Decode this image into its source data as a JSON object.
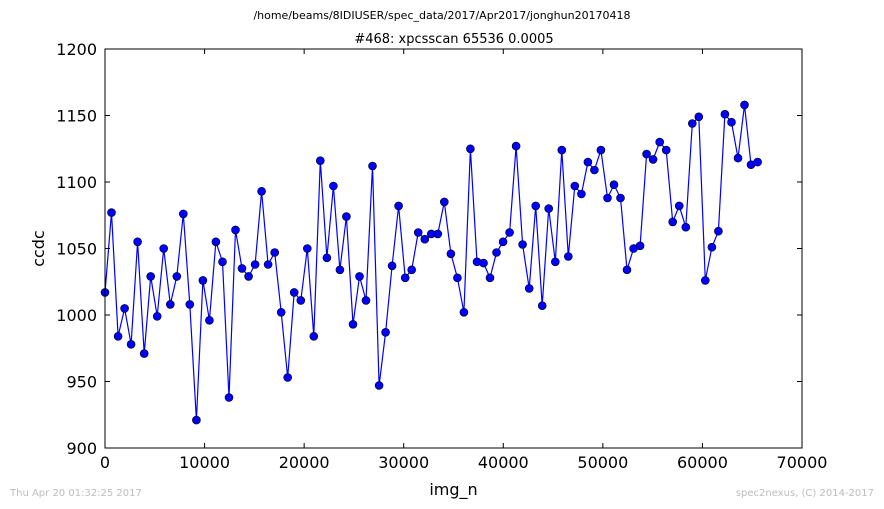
{
  "header": {
    "path": "/home/beams/8IDIUSER/spec_data/2017/Apr2017/jonghun20170418"
  },
  "footer": {
    "timestamp": "Thu Apr 20 01:32:25 2017",
    "credit": "spec2nexus, (C) 2014-2017"
  },
  "chart_data": {
    "type": "line",
    "title": "#468: xpcsscan 65536 0.0005",
    "xlabel": "img_n",
    "ylabel": "ccdc",
    "xlim": [
      0,
      70000
    ],
    "ylim": [
      900,
      1200
    ],
    "xticks": [
      0,
      10000,
      20000,
      30000,
      40000,
      50000,
      60000,
      70000
    ],
    "yticks": [
      900,
      950,
      1000,
      1050,
      1100,
      1150,
      1200
    ],
    "grid": false,
    "legend": "none",
    "color": "#0000ff",
    "x": [
      0,
      655,
      1311,
      1966,
      2621,
      3277,
      3932,
      4588,
      5243,
      5898,
      6554,
      7209,
      7864,
      8520,
      9175,
      9830,
      10486,
      11141,
      11796,
      12452,
      13107,
      13763,
      14418,
      15073,
      15729,
      16384,
      17039,
      17695,
      18350,
      19005,
      19661,
      20316,
      20972,
      21627,
      22282,
      22938,
      23593,
      24248,
      24904,
      25559,
      26214,
      26870,
      27525,
      28181,
      28836,
      29491,
      30147,
      30802,
      31457,
      32113,
      32768,
      33423,
      34079,
      34734,
      35389,
      36045,
      36700,
      37356,
      38011,
      38666,
      39322,
      39977,
      40632,
      41288,
      41943,
      42598,
      43254,
      43909,
      44565,
      45220,
      45875,
      46531,
      47186,
      47841,
      48497,
      49152,
      49807,
      50463,
      51118,
      51774,
      52429,
      53084,
      53740,
      54395,
      55050,
      55706,
      56361,
      57016,
      57672,
      58327,
      58982,
      59638,
      60293,
      60949,
      61604,
      62259,
      62915,
      63570,
      64225,
      64881,
      65536
    ],
    "y": [
      1017,
      1077,
      984,
      1005,
      978,
      1055,
      971,
      1029,
      999,
      1050,
      1008,
      1029,
      1076,
      1008,
      921,
      1026,
      996,
      1055,
      1040,
      938,
      1064,
      1035,
      1029,
      1038,
      1093,
      1038,
      1047,
      1002,
      953,
      1017,
      1011,
      1050,
      984,
      1116,
      1043,
      1097,
      1034,
      1074,
      993,
      1029,
      1011,
      1112,
      947,
      987,
      1037,
      1082,
      1028,
      1034,
      1062,
      1057,
      1061,
      1061,
      1085,
      1046,
      1028,
      1002,
      1125,
      1040,
      1039,
      1028,
      1047,
      1055,
      1062,
      1127,
      1053,
      1020,
      1082,
      1007,
      1080,
      1040,
      1124,
      1044,
      1097,
      1091,
      1115,
      1109,
      1124,
      1088,
      1098,
      1088,
      1034,
      1050,
      1052,
      1121,
      1117,
      1130,
      1124,
      1070,
      1082,
      1066,
      1144,
      1149,
      1026,
      1051,
      1063,
      1151,
      1145,
      1118,
      1158,
      1113,
      1115
    ]
  }
}
